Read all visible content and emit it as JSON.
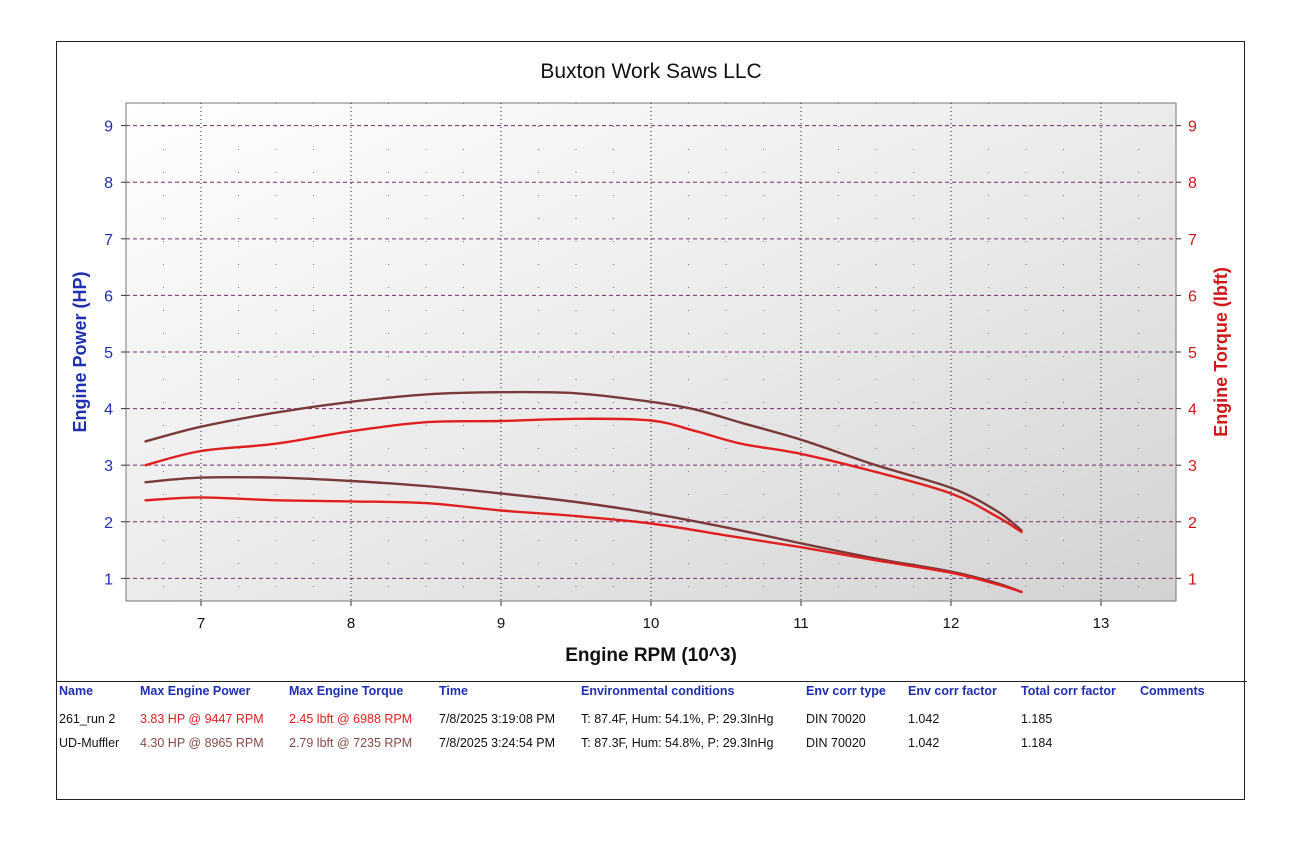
{
  "chart_data": {
    "type": "line",
    "title": "Buxton Work Saws LLC",
    "xlabel": "Engine RPM (10^3)",
    "ylabel_left": "Engine Power (HP)",
    "ylabel_right": "Engine Torque (lbft)",
    "xlim": [
      6.5,
      13.5
    ],
    "ylim": [
      0.6,
      9.4
    ],
    "x_ticks": [
      "7",
      "8",
      "9",
      "10",
      "11",
      "12",
      "13"
    ],
    "y_ticks_left": [
      "1",
      "2",
      "3",
      "4",
      "5",
      "6",
      "7",
      "8",
      "9"
    ],
    "y_ticks_right": [
      "1",
      "2",
      "3",
      "4",
      "5",
      "6",
      "7",
      "8",
      "9"
    ],
    "grid": true,
    "colors": {
      "run_261": "#e02020",
      "ud_muffler": "#7a3a3a",
      "left_axis": "#1f2fb0",
      "right_axis": "#d01818",
      "title": "#111111"
    },
    "series": [
      {
        "name": "UD-Muffler",
        "quantity": "Engine Power",
        "color": "#7a3a3a",
        "x": [
          6.63,
          7.0,
          7.5,
          8.0,
          8.5,
          9.0,
          9.5,
          10.0,
          10.3,
          10.6,
          11.0,
          11.5,
          12.0,
          12.3,
          12.47
        ],
        "y": [
          3.42,
          3.68,
          3.93,
          4.12,
          4.25,
          4.29,
          4.27,
          4.12,
          3.98,
          3.75,
          3.45,
          3.0,
          2.6,
          2.2,
          1.85
        ]
      },
      {
        "name": "261_run 2",
        "quantity": "Engine Power",
        "color": "#e02020",
        "x": [
          6.63,
          7.0,
          7.5,
          8.0,
          8.5,
          9.0,
          9.5,
          10.0,
          10.3,
          10.6,
          11.0,
          11.5,
          12.0,
          12.3,
          12.47
        ],
        "y": [
          3.0,
          3.25,
          3.38,
          3.6,
          3.76,
          3.78,
          3.82,
          3.79,
          3.6,
          3.38,
          3.2,
          2.88,
          2.5,
          2.1,
          1.82
        ]
      },
      {
        "name": "UD-Muffler",
        "quantity": "Engine Torque",
        "color": "#7a3a3a",
        "x": [
          6.63,
          7.0,
          7.5,
          8.0,
          8.5,
          9.0,
          9.5,
          10.0,
          10.5,
          11.0,
          11.5,
          12.0,
          12.3,
          12.47
        ],
        "y": [
          2.7,
          2.78,
          2.78,
          2.72,
          2.63,
          2.5,
          2.35,
          2.15,
          1.9,
          1.62,
          1.35,
          1.12,
          0.92,
          0.76
        ]
      },
      {
        "name": "261_run 2",
        "quantity": "Engine Torque",
        "color": "#e02020",
        "x": [
          6.63,
          7.0,
          7.5,
          8.0,
          8.5,
          9.0,
          9.5,
          10.0,
          10.5,
          11.0,
          11.5,
          12.0,
          12.3,
          12.47
        ],
        "y": [
          2.38,
          2.43,
          2.38,
          2.36,
          2.33,
          2.2,
          2.1,
          1.97,
          1.76,
          1.55,
          1.32,
          1.1,
          0.9,
          0.76
        ]
      }
    ]
  },
  "table": {
    "headers": {
      "name": "Name",
      "power": "Max Engine Power",
      "torque": "Max Engine Torque",
      "time": "Time",
      "env": "Environmental conditions",
      "corrtype": "Env corr type",
      "corrfac": "Env corr factor",
      "total": "Total corr factor",
      "comments": "Comments"
    },
    "rows": [
      {
        "name": "261_run 2",
        "power": "3.83 HP @ 9447 RPM",
        "torque": "2.45 lbft @ 6988 RPM",
        "time": "7/8/2025 3:19:08 PM",
        "env": "T: 87.4F, Hum: 54.1%, P: 29.3InHg",
        "corrtype": "DIN 70020",
        "corrfac": "1.042",
        "total": "1.185"
      },
      {
        "name": "UD-Muffler",
        "power": "4.30 HP @ 8965 RPM",
        "torque": "2.79 lbft @ 7235 RPM",
        "time": "7/8/2025 3:24:54 PM",
        "env": "T: 87.3F, Hum: 54.8%, P: 29.3InHg",
        "corrtype": "DIN 70020",
        "corrfac": "1.042",
        "total": "1.184"
      }
    ]
  }
}
